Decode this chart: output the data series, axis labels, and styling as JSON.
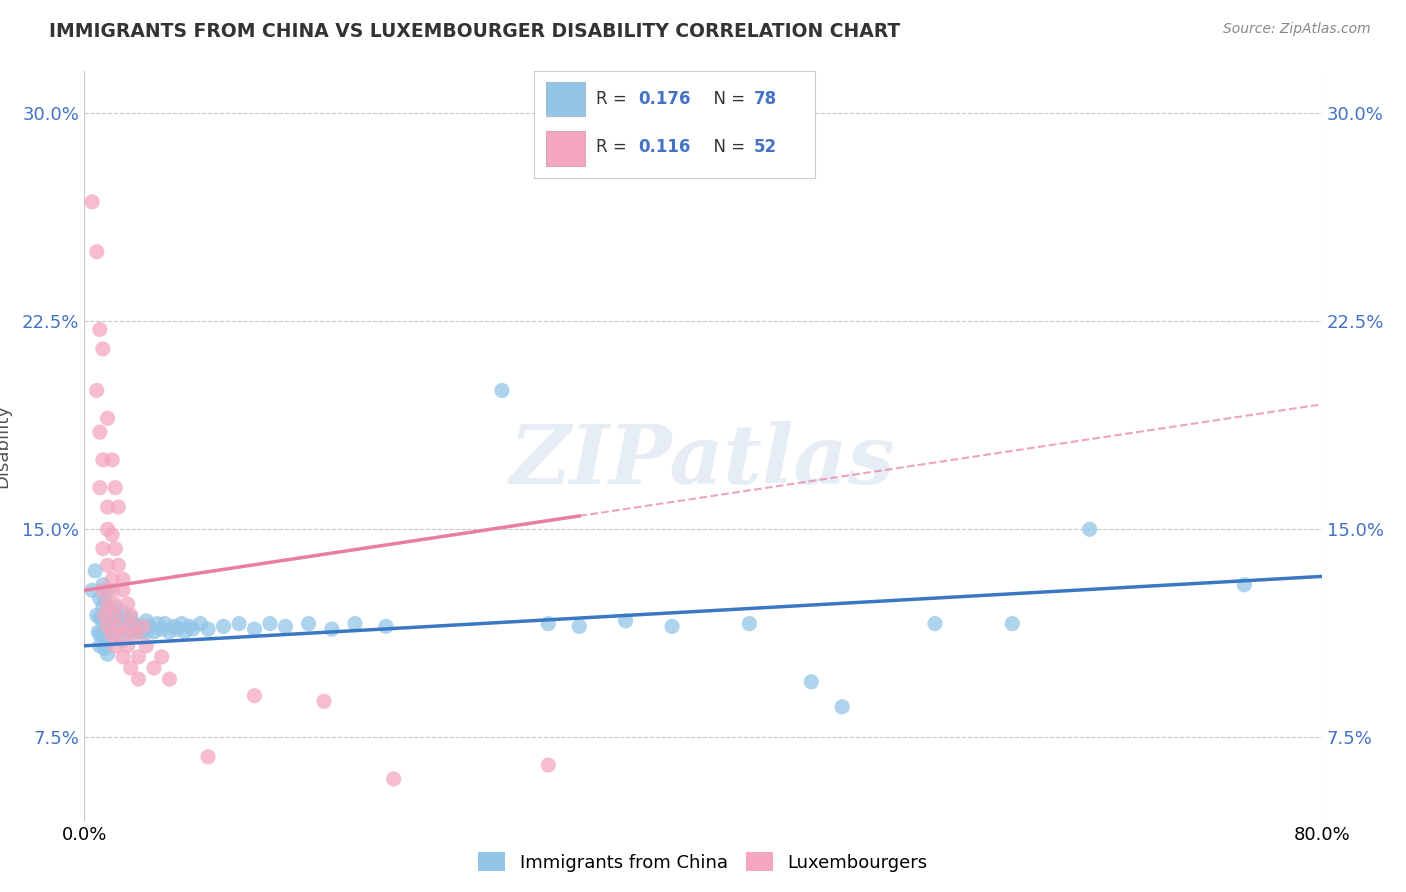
{
  "title": "IMMIGRANTS FROM CHINA VS LUXEMBOURGER DISABILITY CORRELATION CHART",
  "source": "Source: ZipAtlas.com",
  "ylabel": "Disability",
  "xlim": [
    0.0,
    0.8
  ],
  "ylim": [
    0.045,
    0.315
  ],
  "yticks": [
    0.075,
    0.15,
    0.225,
    0.3
  ],
  "ytick_labels": [
    "7.5%",
    "15.0%",
    "22.5%",
    "30.0%"
  ],
  "blue_color": "#92c5e8",
  "pink_color": "#f4a7be",
  "blue_line_color": "#3a78c3",
  "pink_line_color": "#e87fa0",
  "background_color": "#ffffff",
  "grid_color": "#c8c8c8",
  "blue_scatter": [
    [
      0.005,
      0.128
    ],
    [
      0.007,
      0.135
    ],
    [
      0.008,
      0.119
    ],
    [
      0.009,
      0.113
    ],
    [
      0.01,
      0.125
    ],
    [
      0.01,
      0.118
    ],
    [
      0.01,
      0.112
    ],
    [
      0.01,
      0.108
    ],
    [
      0.012,
      0.13
    ],
    [
      0.012,
      0.122
    ],
    [
      0.012,
      0.117
    ],
    [
      0.012,
      0.112
    ],
    [
      0.013,
      0.125
    ],
    [
      0.013,
      0.118
    ],
    [
      0.013,
      0.112
    ],
    [
      0.013,
      0.107
    ],
    [
      0.015,
      0.128
    ],
    [
      0.015,
      0.122
    ],
    [
      0.015,
      0.116
    ],
    [
      0.015,
      0.11
    ],
    [
      0.015,
      0.105
    ],
    [
      0.017,
      0.12
    ],
    [
      0.017,
      0.115
    ],
    [
      0.017,
      0.11
    ],
    [
      0.018,
      0.118
    ],
    [
      0.018,
      0.112
    ],
    [
      0.02,
      0.122
    ],
    [
      0.02,
      0.117
    ],
    [
      0.02,
      0.112
    ],
    [
      0.022,
      0.118
    ],
    [
      0.022,
      0.113
    ],
    [
      0.023,
      0.115
    ],
    [
      0.025,
      0.12
    ],
    [
      0.025,
      0.115
    ],
    [
      0.025,
      0.11
    ],
    [
      0.027,
      0.117
    ],
    [
      0.028,
      0.114
    ],
    [
      0.03,
      0.118
    ],
    [
      0.03,
      0.113
    ],
    [
      0.032,
      0.116
    ],
    [
      0.033,
      0.113
    ],
    [
      0.035,
      0.115
    ],
    [
      0.037,
      0.113
    ],
    [
      0.038,
      0.115
    ],
    [
      0.04,
      0.117
    ],
    [
      0.04,
      0.113
    ],
    [
      0.042,
      0.115
    ],
    [
      0.045,
      0.113
    ],
    [
      0.047,
      0.116
    ],
    [
      0.05,
      0.114
    ],
    [
      0.052,
      0.116
    ],
    [
      0.055,
      0.113
    ],
    [
      0.058,
      0.115
    ],
    [
      0.06,
      0.114
    ],
    [
      0.063,
      0.116
    ],
    [
      0.065,
      0.113
    ],
    [
      0.068,
      0.115
    ],
    [
      0.07,
      0.114
    ],
    [
      0.075,
      0.116
    ],
    [
      0.08,
      0.114
    ],
    [
      0.09,
      0.115
    ],
    [
      0.1,
      0.116
    ],
    [
      0.11,
      0.114
    ],
    [
      0.12,
      0.116
    ],
    [
      0.13,
      0.115
    ],
    [
      0.145,
      0.116
    ],
    [
      0.16,
      0.114
    ],
    [
      0.175,
      0.116
    ],
    [
      0.195,
      0.115
    ],
    [
      0.27,
      0.2
    ],
    [
      0.3,
      0.116
    ],
    [
      0.32,
      0.115
    ],
    [
      0.35,
      0.117
    ],
    [
      0.38,
      0.115
    ],
    [
      0.43,
      0.116
    ],
    [
      0.47,
      0.095
    ],
    [
      0.49,
      0.086
    ],
    [
      0.55,
      0.116
    ],
    [
      0.6,
      0.116
    ],
    [
      0.65,
      0.15
    ],
    [
      0.75,
      0.13
    ]
  ],
  "pink_scatter": [
    [
      0.005,
      0.268
    ],
    [
      0.008,
      0.25
    ],
    [
      0.01,
      0.222
    ],
    [
      0.012,
      0.215
    ],
    [
      0.008,
      0.2
    ],
    [
      0.01,
      0.185
    ],
    [
      0.015,
      0.19
    ],
    [
      0.012,
      0.175
    ],
    [
      0.018,
      0.175
    ],
    [
      0.01,
      0.165
    ],
    [
      0.02,
      0.165
    ],
    [
      0.015,
      0.158
    ],
    [
      0.022,
      0.158
    ],
    [
      0.015,
      0.15
    ],
    [
      0.018,
      0.148
    ],
    [
      0.012,
      0.143
    ],
    [
      0.02,
      0.143
    ],
    [
      0.015,
      0.137
    ],
    [
      0.022,
      0.137
    ],
    [
      0.018,
      0.132
    ],
    [
      0.025,
      0.132
    ],
    [
      0.012,
      0.128
    ],
    [
      0.018,
      0.128
    ],
    [
      0.025,
      0.128
    ],
    [
      0.015,
      0.123
    ],
    [
      0.02,
      0.123
    ],
    [
      0.028,
      0.123
    ],
    [
      0.013,
      0.119
    ],
    [
      0.02,
      0.119
    ],
    [
      0.03,
      0.119
    ],
    [
      0.015,
      0.115
    ],
    [
      0.022,
      0.115
    ],
    [
      0.03,
      0.115
    ],
    [
      0.038,
      0.115
    ],
    [
      0.018,
      0.112
    ],
    [
      0.025,
      0.112
    ],
    [
      0.033,
      0.112
    ],
    [
      0.02,
      0.108
    ],
    [
      0.028,
      0.108
    ],
    [
      0.04,
      0.108
    ],
    [
      0.025,
      0.104
    ],
    [
      0.035,
      0.104
    ],
    [
      0.05,
      0.104
    ],
    [
      0.03,
      0.1
    ],
    [
      0.045,
      0.1
    ],
    [
      0.035,
      0.096
    ],
    [
      0.055,
      0.096
    ],
    [
      0.11,
      0.09
    ],
    [
      0.155,
      0.088
    ],
    [
      0.08,
      0.068
    ],
    [
      0.3,
      0.065
    ],
    [
      0.2,
      0.06
    ]
  ],
  "blue_line_y_start": 0.108,
  "blue_line_y_end": 0.133,
  "pink_line_y_start": 0.128,
  "pink_line_y_end": 0.195,
  "watermark": "ZIPatlas",
  "legend_labels": [
    "Immigrants from China",
    "Luxembourgers"
  ]
}
